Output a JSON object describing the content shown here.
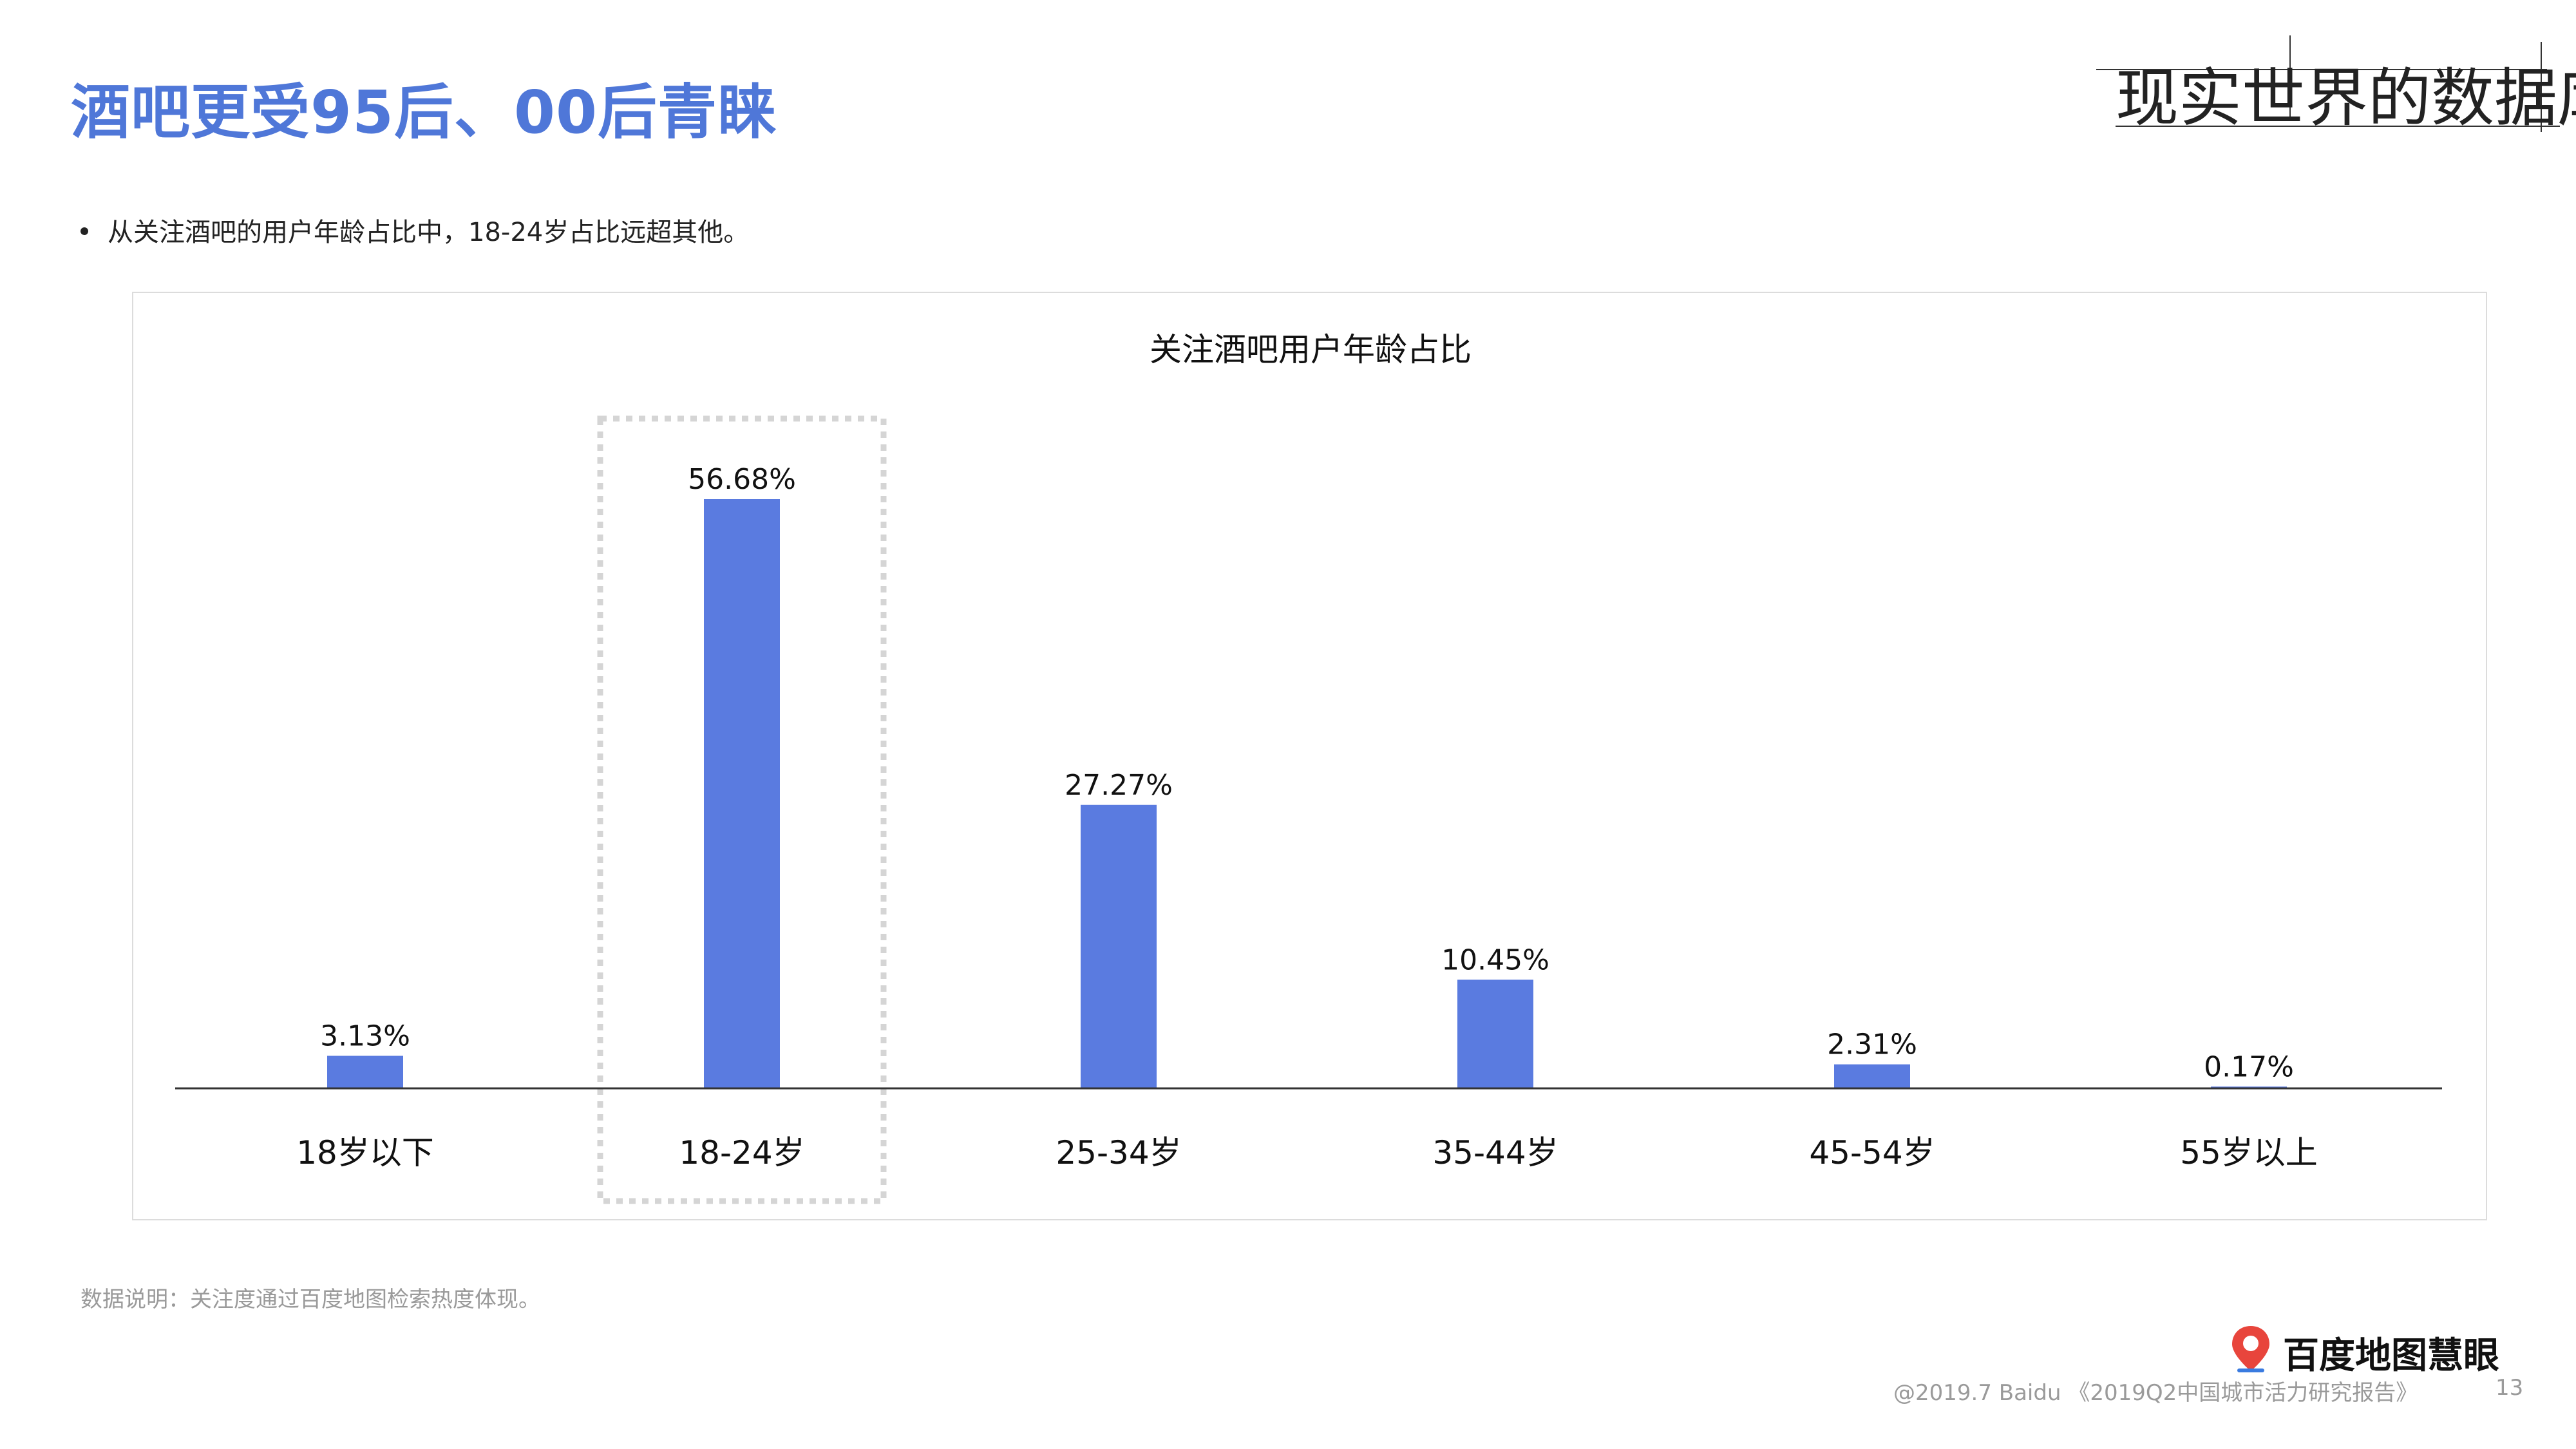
{
  "page": {
    "title": "酒吧更受95后、00后青睐",
    "brand": "现实世界的数据库",
    "bullet": "从关注酒吧的用户年龄占比中，18-24岁占比远超其他。",
    "note": "数据说明：关注度通过百度地图检索热度体现。",
    "logo_text": "百度地图慧眼",
    "footer": "@2019.7 Baidu 《2019Q2中国城市活力研究报告》",
    "page_number": "13"
  },
  "colors": {
    "accent": "#4f77d8",
    "bar": "#5a7be0",
    "highlight_border": "#d5d5d5",
    "logo_pin": "#e8453c"
  },
  "icons": {
    "logo": "baidu-map-pin-icon"
  },
  "chart_data": {
    "type": "bar",
    "title": "关注酒吧用户年龄占比",
    "categories": [
      "18岁以下",
      "18-24岁",
      "25-34岁",
      "35-44岁",
      "45-54岁",
      "55岁以上"
    ],
    "values": [
      3.13,
      56.68,
      27.27,
      10.45,
      2.31,
      0.17
    ],
    "data_labels": [
      "3.13%",
      "56.68%",
      "27.27%",
      "10.45%",
      "2.31%",
      "0.17%"
    ],
    "unit": "%",
    "ylim": [
      0,
      56.68
    ],
    "highlighted_category": "18-24岁",
    "grid": false,
    "legend": "none"
  }
}
